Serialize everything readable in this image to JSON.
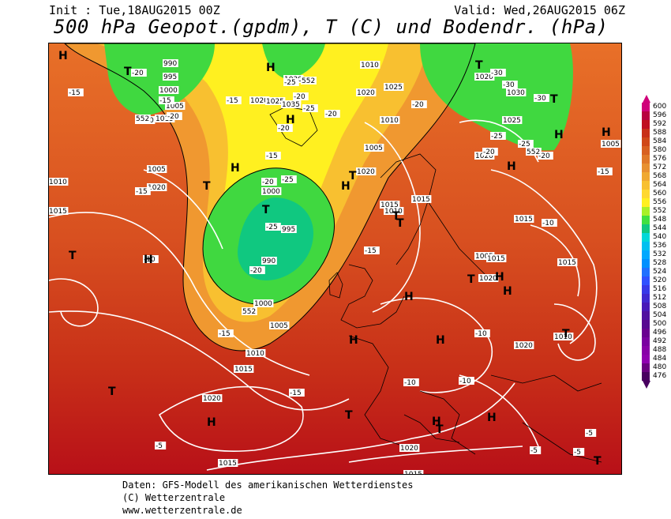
{
  "header": {
    "init": "Init : Tue,18AUG2015 00Z",
    "valid": "Valid: Wed,26AUG2015 06Z",
    "title": "500 hPa Geopot.(gpdm), T (C) und Bodendr. (hPa)"
  },
  "legend": {
    "values": [
      "600",
      "596",
      "592",
      "588",
      "584",
      "580",
      "576",
      "572",
      "568",
      "564",
      "560",
      "556",
      "552",
      "548",
      "544",
      "540",
      "536",
      "532",
      "528",
      "524",
      "520",
      "516",
      "512",
      "508",
      "504",
      "500",
      "496",
      "492",
      "488",
      "484",
      "480",
      "476"
    ],
    "colors": [
      "#d0007a",
      "#b80040",
      "#c01020",
      "#c83018",
      "#d04818",
      "#d86020",
      "#e07828",
      "#e89030",
      "#f0a830",
      "#f8c030",
      "#ffd830",
      "#fff020",
      "#a8f028",
      "#40e040",
      "#10c880",
      "#00d8d8",
      "#00c0f0",
      "#00a8ff",
      "#0090ff",
      "#2070ff",
      "#3050ff",
      "#3838e8",
      "#4028d0",
      "#4818b8",
      "#5010a0",
      "#580890",
      "#6a0090",
      "#7a00a0",
      "#8800a8",
      "#9000b0",
      "#6a0080",
      "#480060"
    ]
  },
  "map": {
    "pressure_labels": [
      "990",
      "995",
      "1000",
      "1005",
      "1010",
      "1015",
      "1020",
      "1025",
      "1030",
      "1035",
      "1010",
      "1015",
      "1020",
      "1005",
      "1000",
      "995",
      "990",
      "1000",
      "1005",
      "1010",
      "1015",
      "1020",
      "1015",
      "1010",
      "1020",
      "1025",
      "1010",
      "1005",
      "1020",
      "1015",
      "1010",
      "1015",
      "1020",
      "1030",
      "1025",
      "1020",
      "1015",
      "1015",
      "1010",
      "1005",
      "1015",
      "1020",
      "1020",
      "1015",
      "1020",
      "1005"
    ],
    "temp_labels": [
      "-20",
      "-15",
      "-20",
      "-25",
      "-20",
      "-15",
      "-25",
      "-20",
      "-25",
      "-20",
      "-30",
      "-30",
      "-25",
      "-20",
      "-30",
      "-25",
      "-20",
      "-15",
      "-15",
      "-20",
      "-25",
      "-20",
      "-25",
      "-20",
      "-15",
      "-10",
      "-10",
      "-10",
      "-15",
      "-10",
      "-5",
      "-5",
      "-5",
      "-5",
      "-15",
      "-15",
      "-15",
      "-10"
    ],
    "geopot_labels": [
      "552",
      "552",
      "552",
      "552"
    ],
    "highs": [
      "H",
      "H",
      "H",
      "H",
      "H",
      "H",
      "H",
      "H",
      "H",
      "H",
      "H",
      "H",
      "H",
      "H",
      "H",
      "H",
      "H"
    ],
    "lows": [
      "T",
      "T",
      "T",
      "T",
      "T",
      "T",
      "T",
      "T",
      "T",
      "T",
      "T",
      "T",
      "T",
      "T",
      "T"
    ]
  },
  "footer": {
    "line1": "Daten: GFS-Modell des amerikanischen Wetterdienstes",
    "line2": "(C) Wetterzentrale",
    "line3": "www.wetterzentrale.de"
  }
}
